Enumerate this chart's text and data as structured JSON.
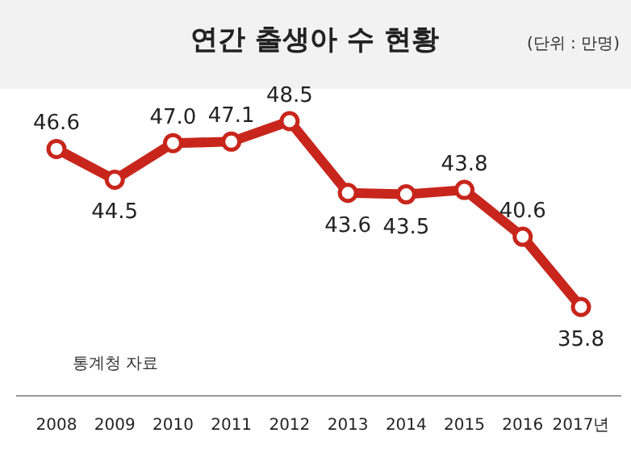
{
  "chart_data": {
    "type": "line",
    "title": "연간 출생아 수 현황",
    "subtitle": "(단위 : 만명)",
    "categories": [
      "2008",
      "2009",
      "2010",
      "2011",
      "2012",
      "2013",
      "2014",
      "2015",
      "2016",
      "2017년"
    ],
    "series": [
      {
        "color": "#c8261c",
        "values": [
          46.6,
          44.5,
          47.0,
          47.1,
          48.5,
          43.6,
          43.5,
          43.8,
          40.6,
          35.8
        ],
        "value_labels": [
          "46.6",
          "44.5",
          "47.0",
          "47.1",
          "48.5",
          "43.6",
          "43.5",
          "43.8",
          "40.6",
          "35.8"
        ]
      }
    ],
    "marker": "circle",
    "annotations": [
      "통계청 자료"
    ]
  }
}
